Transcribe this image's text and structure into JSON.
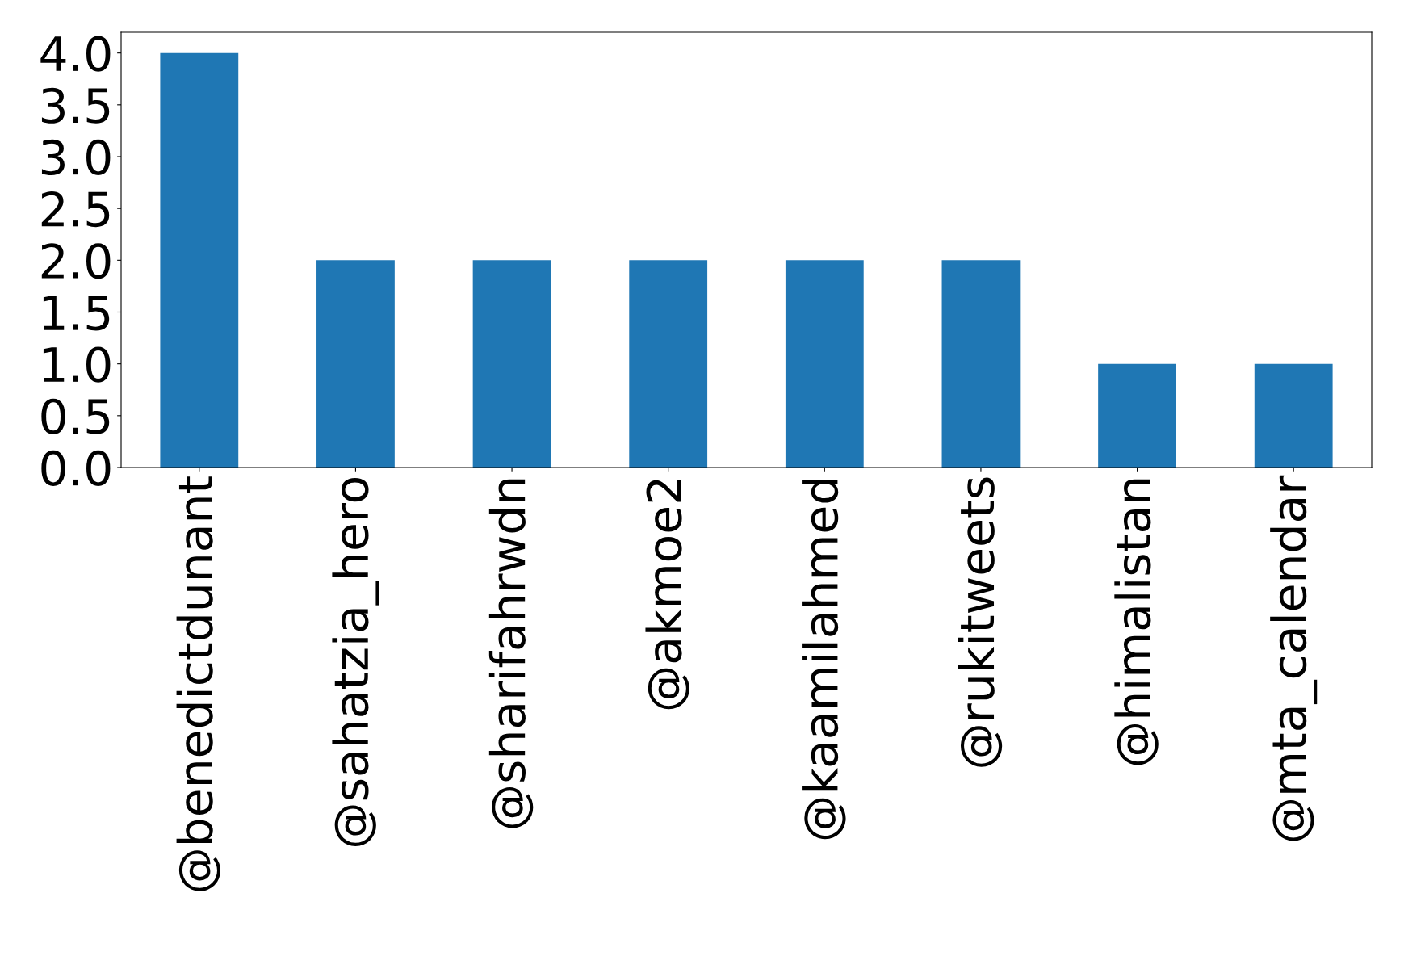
{
  "chart_data": {
    "type": "bar",
    "categories": [
      "@benedictdunant",
      "@sahatzia_hero",
      "@sharifahrwdn",
      "@akmoe2",
      "@kaamilahmed",
      "@rukitweets",
      "@himalistan",
      "@mta_calendar"
    ],
    "values": [
      4,
      2,
      2,
      2,
      2,
      2,
      1,
      1
    ],
    "color": "#1f77b4",
    "ylim": [
      0,
      4.2
    ],
    "yticks": [
      {
        "value": 0,
        "label": "0.0"
      },
      {
        "value": 0.5,
        "label": "0.5"
      },
      {
        "value": 1,
        "label": "1.0"
      },
      {
        "value": 1.5,
        "label": "1.5"
      },
      {
        "value": 2,
        "label": "2.0"
      },
      {
        "value": 2.5,
        "label": "2.5"
      },
      {
        "value": 3,
        "label": "3.0"
      },
      {
        "value": 3.5,
        "label": "3.5"
      },
      {
        "value": 4,
        "label": "4.0"
      }
    ],
    "grid": false
  }
}
